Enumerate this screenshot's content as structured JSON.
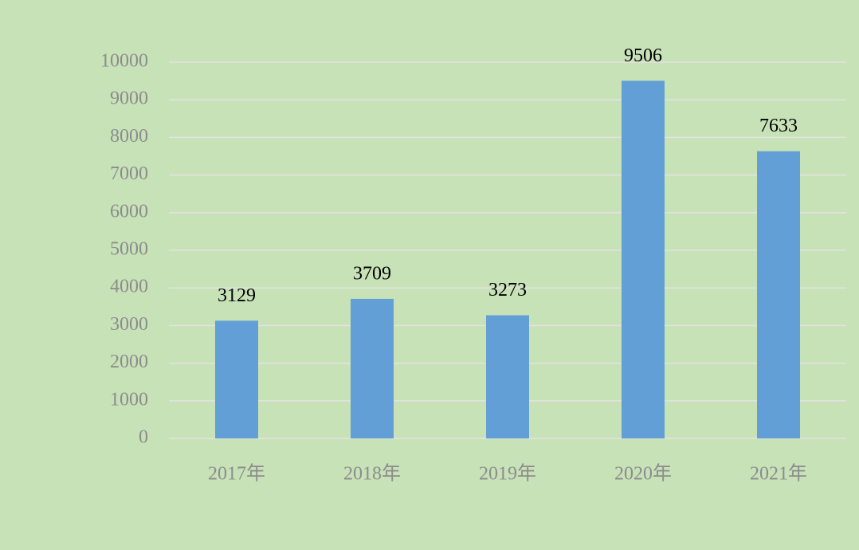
{
  "chart_data": {
    "type": "bar",
    "categories": [
      "2017年",
      "2018年",
      "2019年",
      "2020年",
      "2021年"
    ],
    "values": [
      3129,
      3709,
      3273,
      9506,
      7633
    ],
    "color": "#619fd6",
    "ylim": [
      0,
      10000
    ],
    "yticks": [
      0,
      1000,
      2000,
      3000,
      4000,
      5000,
      6000,
      7000,
      8000,
      9000,
      10000
    ],
    "grid": true
  }
}
